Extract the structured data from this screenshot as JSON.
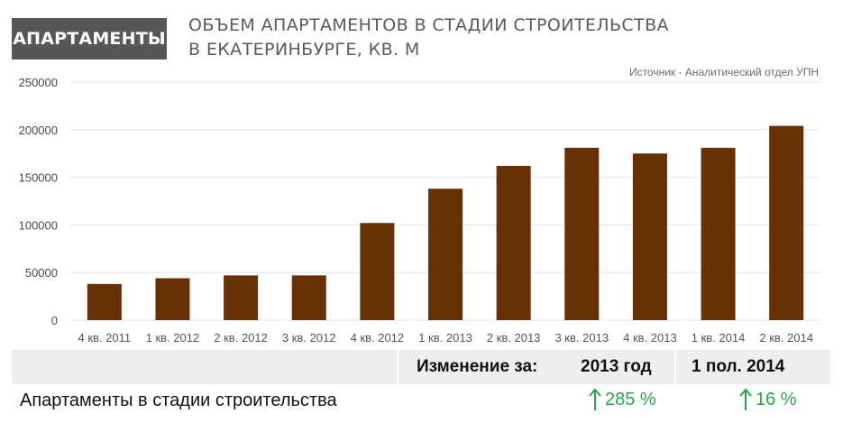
{
  "header": {
    "badge": "АПАРТАМЕНТЫ",
    "title_line1": "ОБЪЕМ АПАРТАМЕНТОВ В СТАДИИ СТРОИТЕЛЬСТВА",
    "title_line2": "В ЕКАТЕРИНБУРГЕ, КВ. М",
    "source": "Источник - Аналитический отдел УПН"
  },
  "chart_data": {
    "type": "bar",
    "categories": [
      "4 кв. 2011",
      "1 кв. 2012",
      "2 кв. 2012",
      "3 кв. 2012",
      "4 кв. 2012",
      "1 кв. 2013",
      "2 кв. 2013",
      "3 кв. 2013",
      "4 кв. 2013",
      "1 кв. 2014",
      "2 кв. 2014"
    ],
    "values": [
      38000,
      44000,
      47000,
      47000,
      102000,
      138000,
      162000,
      181000,
      175000,
      181000,
      204000
    ],
    "yticks": [
      0,
      50000,
      100000,
      150000,
      200000,
      250000
    ],
    "ylim": [
      0,
      250000
    ],
    "grid": true,
    "bar_color": "#653105"
  },
  "summary": {
    "header_label": "Изменение за:",
    "col1": "2013 год",
    "col2": "1 пол. 2014",
    "row_label": "Апартаменты в стадии строительства",
    "change1": "285 %",
    "change2": "16 %",
    "up_color": "#2aa64a"
  }
}
